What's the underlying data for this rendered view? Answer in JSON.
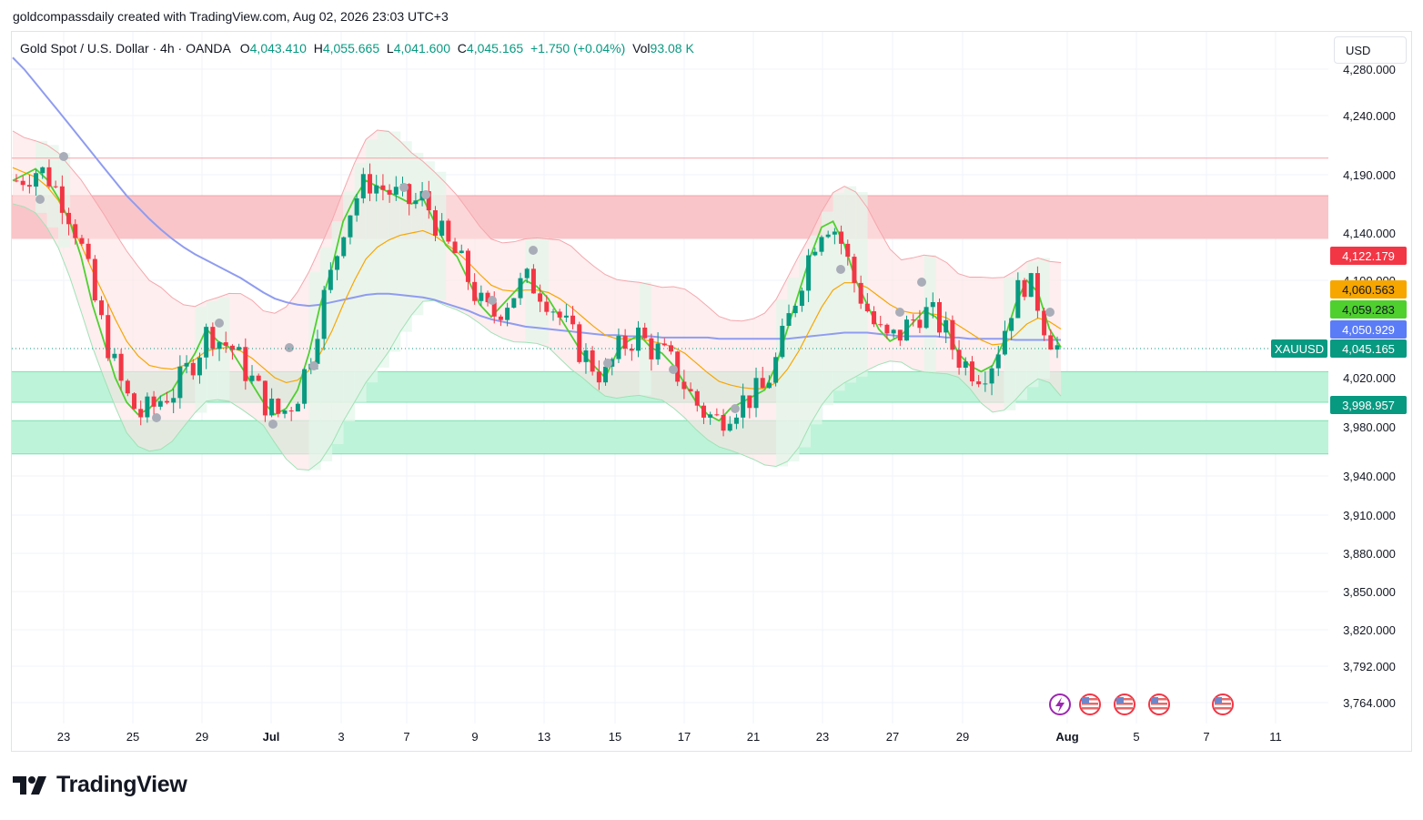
{
  "header": {
    "attribution": "goldcompassdaily created with TradingView.com, Aug 02, 2026 23:03 UTC+3"
  },
  "legend": {
    "symbol": "Gold Spot / U.S. Dollar · 4h · OANDA",
    "o_label": "O",
    "o_value": "4,043.410",
    "h_label": "H",
    "h_value": "4,055.665",
    "l_label": "L",
    "l_value": "4,041.600",
    "c_label": "C",
    "c_value": "4,045.165",
    "change": "+1.750 (+0.04%)",
    "vol_label": "Vol",
    "vol_value": "93.08 K"
  },
  "currency_button": {
    "label": "USD"
  },
  "brand": {
    "name": "TradingView"
  },
  "chart_data": {
    "type": "candlestick",
    "y_axis_ticks": [
      "4,280.000",
      "4,240.000",
      "4,190.000",
      "4,140.000",
      "4,100.000",
      "4,020.000",
      "3,980.000",
      "3,940.000",
      "3,910.000",
      "3,880.000",
      "3,850.000",
      "3,820.000",
      "3,792.000",
      "3,764.000"
    ],
    "x_axis_ticks": [
      "23",
      "25",
      "29",
      "Jul",
      "3",
      "7",
      "9",
      "13",
      "15",
      "17",
      "21",
      "23",
      "27",
      "29",
      "Aug",
      "5",
      "7",
      "11"
    ],
    "price_labels": [
      {
        "text": "4,122.179",
        "color": "#f23645"
      },
      {
        "text": "4,060.563",
        "color": "#f7a600"
      },
      {
        "text": "4,059.283",
        "color": "#4fd02f"
      },
      {
        "text": "4,050.929",
        "color": "#5b7cf7"
      },
      {
        "text": "4,045.165",
        "color": "#089981",
        "tag": "XAUUSD"
      },
      {
        "text": "3,998.957",
        "color": "#089981"
      }
    ],
    "horizontal_line": 4204,
    "zones": [
      {
        "type": "resistance",
        "from": 4135,
        "to": 4172,
        "color": "#f9c5c8"
      },
      {
        "type": "support",
        "from": 4000,
        "to": 4025,
        "color": "#bdf3d9"
      },
      {
        "type": "support",
        "from": 3958,
        "to": 3985,
        "color": "#bdf3d9"
      }
    ],
    "series": [
      {
        "values": [
          4185,
          4190,
          4195,
          4186,
          4170,
          4150,
          4120,
          4080,
          4050,
          4020,
          4000,
          3990,
          3995,
          4005,
          4010,
          4025,
          4040,
          4060,
          4050,
          4045,
          4030,
          4015,
          4000,
          3990,
          3995,
          4010,
          4040,
          4080,
          4110,
          4150,
          4170,
          4185,
          4180,
          4175,
          4170,
          4165,
          4170,
          4150,
          4130,
          4120,
          4100,
          4080,
          4070,
          4080,
          4090,
          4100,
          4095,
          4085,
          4070,
          4055,
          4040,
          4030,
          4020,
          4040,
          4050,
          4055,
          4045,
          4040,
          4030,
          4015,
          4000,
          3990,
          3985,
          3995,
          4000,
          4005,
          4010,
          4030,
          4060,
          4090,
          4120,
          4145,
          4150,
          4130,
          4100,
          4080,
          4060,
          4050,
          4055,
          4065,
          4075,
          4070,
          4060,
          4040,
          4030,
          4025,
          4030,
          4050,
          4080,
          4100,
          4090,
          4060,
          4045
        ]
      },
      {
        "values": [
          4196,
          4192,
          4188,
          4180,
          4168,
          4150,
          4130,
          4108,
          4088,
          4068,
          4050,
          4038,
          4030,
          4028,
          4027,
          4030,
          4035,
          4042,
          4044,
          4045,
          4042,
          4036,
          4028,
          4020,
          4016,
          4018,
          4026,
          4040,
          4058,
          4080,
          4100,
          4118,
          4128,
          4134,
          4138,
          4140,
          4142,
          4138,
          4131,
          4124,
          4115,
          4105,
          4096,
          4092,
          4091,
          4092,
          4092,
          4090,
          4085,
          4078,
          4070,
          4062,
          4055,
          4052,
          4052,
          4052,
          4050,
          4048,
          4045,
          4040,
          4032,
          4024,
          4017,
          4014,
          4012,
          4011,
          4011,
          4016,
          4027,
          4042,
          4060,
          4078,
          4092,
          4098,
          4098,
          4094,
          4087,
          4080,
          4075,
          4073,
          4073,
          4072,
          4069,
          4063,
          4057,
          4051,
          4047,
          4048,
          4055,
          4064,
          4069,
          4066,
          4060
        ]
      },
      {
        "values": [
          4290,
          4280,
          4268,
          4256,
          4244,
          4232,
          4220,
          4208,
          4196,
          4184,
          4172,
          4162,
          4152,
          4143,
          4135,
          4128,
          4122,
          4117,
          4112,
          4107,
          4102,
          4096,
          4090,
          4085,
          4082,
          4080,
          4079,
          4080,
          4082,
          4084,
          4086,
          4088,
          4089,
          4089,
          4088,
          4087,
          4086,
          4084,
          4081,
          4078,
          4075,
          4071,
          4068,
          4066,
          4064,
          4062,
          4061,
          4060,
          4059,
          4058,
          4057,
          4056,
          4055,
          4055,
          4054,
          4054,
          4054,
          4053,
          4053,
          4053,
          4053,
          4053,
          4052,
          4052,
          4052,
          4052,
          4052,
          4052,
          4052,
          4053,
          4054,
          4055,
          4056,
          4057,
          4057,
          4057,
          4056,
          4055,
          4054,
          4054,
          4054,
          4054,
          4053,
          4053,
          4052,
          4052,
          4052,
          4052,
          4051,
          4051,
          4051,
          4051,
          4051
        ]
      }
    ]
  }
}
